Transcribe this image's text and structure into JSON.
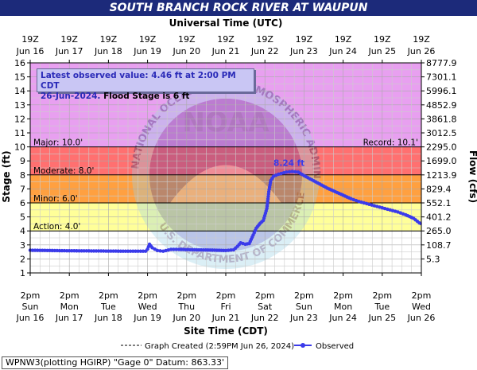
{
  "title": "SOUTH BRANCH ROCK RIVER AT WAUPUN",
  "top_axis_title": "Universal Time (UTC)",
  "bottom_axis_title": "Site Time (CDT)",
  "left_axis_title": "Stage (ft)",
  "right_axis_title": "Flow (cfs)",
  "latest_box": {
    "line1": "Latest observed value: 4.46 ft at 2:00 PM CDT",
    "line2_date": "26-Jun-2024.",
    "line2_flood": "Flood Stage is 6 ft"
  },
  "legend": {
    "graph_created": "Graph Created (2:59PM Jun 26, 2024)",
    "observed": "Observed"
  },
  "footer": "WPNW3(plotting HGIRP) \"Gage 0\" Datum: 863.33'",
  "watermark_text": {
    "top": "NATIONAL OCEANIC AND ATMOSPHERIC ADMINISTRATION",
    "center": "NOAA",
    "bottom": "U.S. DEPARTMENT OF COMMERCE"
  },
  "chart_data": {
    "type": "line",
    "x_start": "Jun 16 2pm CDT",
    "ylim": [
      1,
      16
    ],
    "y_ticks": [
      1,
      2,
      3,
      4,
      5,
      6,
      7,
      8,
      9,
      10,
      11,
      12,
      13,
      14,
      15,
      16
    ],
    "x_ticks_bottom": [
      {
        "time": "2pm",
        "day": "Sun",
        "date": "Jun 16"
      },
      {
        "time": "2pm",
        "day": "Mon",
        "date": "Jun 17"
      },
      {
        "time": "2pm",
        "day": "Tue",
        "date": "Jun 18"
      },
      {
        "time": "2pm",
        "day": "Wed",
        "date": "Jun 19"
      },
      {
        "time": "2pm",
        "day": "Thu",
        "date": "Jun 20"
      },
      {
        "time": "2pm",
        "day": "Fri",
        "date": "Jun 21"
      },
      {
        "time": "2pm",
        "day": "Sat",
        "date": "Jun 22"
      },
      {
        "time": "2pm",
        "day": "Sun",
        "date": "Jun 23"
      },
      {
        "time": "2pm",
        "day": "Mon",
        "date": "Jun 24"
      },
      {
        "time": "2pm",
        "day": "Tue",
        "date": "Jun 25"
      },
      {
        "time": "2pm",
        "day": "Wed",
        "date": "Jun 26"
      }
    ],
    "x_ticks_top": [
      {
        "time": "19Z",
        "date": "Jun 16"
      },
      {
        "time": "19Z",
        "date": "Jun 17"
      },
      {
        "time": "19Z",
        "date": "Jun 18"
      },
      {
        "time": "19Z",
        "date": "Jun 19"
      },
      {
        "time": "19Z",
        "date": "Jun 20"
      },
      {
        "time": "19Z",
        "date": "Jun 21"
      },
      {
        "time": "19Z",
        "date": "Jun 22"
      },
      {
        "time": "19Z",
        "date": "Jun 23"
      },
      {
        "time": "19Z",
        "date": "Jun 24"
      },
      {
        "time": "19Z",
        "date": "Jun 25"
      },
      {
        "time": "19Z",
        "date": "Jun 26"
      }
    ],
    "flow_ticks": [
      {
        "stage": 16,
        "label": "8777.9"
      },
      {
        "stage": 15,
        "label": "7301.1"
      },
      {
        "stage": 14,
        "label": "5996.1"
      },
      {
        "stage": 13,
        "label": "4852.9"
      },
      {
        "stage": 12,
        "label": "3861.8"
      },
      {
        "stage": 11,
        "label": "3012.5"
      },
      {
        "stage": 10,
        "label": "2295.0"
      },
      {
        "stage": 9,
        "label": "1699.0"
      },
      {
        "stage": 8,
        "label": "1213.9"
      },
      {
        "stage": 7,
        "label": "829.4"
      },
      {
        "stage": 6,
        "label": "552.1"
      },
      {
        "stage": 5,
        "label": "401.2"
      },
      {
        "stage": 4,
        "label": "265.0"
      },
      {
        "stage": 3,
        "label": "108.7"
      },
      {
        "stage": 2,
        "label": "5.3"
      }
    ],
    "flood_categories": [
      {
        "name": "Record: 10.1'",
        "stage": 10.1,
        "color": "#e8a0f0"
      },
      {
        "name": "Major: 10.0'",
        "stage": 10.0,
        "color": "#ff7070"
      },
      {
        "name": "Moderate: 8.0'",
        "stage": 8.0,
        "color": "#ffa040"
      },
      {
        "name": "Minor: 6.0'",
        "stage": 6.0,
        "color": "#ffff99"
      },
      {
        "name": "Action: 4.0'",
        "stage": 4.0,
        "color": "#ffffff"
      }
    ],
    "crest_label": "8.24 ft",
    "series": [
      {
        "name": "Observed",
        "color": "#3b3bea",
        "points": [
          [
            0.0,
            2.62
          ],
          [
            0.5,
            2.6
          ],
          [
            1.0,
            2.58
          ],
          [
            1.5,
            2.57
          ],
          [
            2.0,
            2.56
          ],
          [
            2.5,
            2.55
          ],
          [
            2.95,
            2.55
          ],
          [
            3.0,
            2.7
          ],
          [
            3.05,
            3.05
          ],
          [
            3.12,
            2.8
          ],
          [
            3.25,
            2.6
          ],
          [
            3.4,
            2.55
          ],
          [
            3.6,
            2.68
          ],
          [
            3.8,
            2.68
          ],
          [
            4.2,
            2.65
          ],
          [
            4.6,
            2.63
          ],
          [
            5.0,
            2.6
          ],
          [
            5.2,
            2.65
          ],
          [
            5.3,
            2.9
          ],
          [
            5.38,
            3.15
          ],
          [
            5.5,
            3.05
          ],
          [
            5.6,
            3.1
          ],
          [
            5.7,
            3.7
          ],
          [
            5.78,
            4.2
          ],
          [
            5.88,
            4.55
          ],
          [
            5.96,
            4.75
          ],
          [
            6.05,
            5.6
          ],
          [
            6.1,
            6.8
          ],
          [
            6.15,
            7.6
          ],
          [
            6.22,
            7.9
          ],
          [
            6.35,
            8.05
          ],
          [
            6.55,
            8.2
          ],
          [
            6.7,
            8.24
          ],
          [
            6.85,
            8.2
          ],
          [
            7.0,
            7.95
          ],
          [
            7.2,
            7.65
          ],
          [
            7.4,
            7.35
          ],
          [
            7.6,
            7.05
          ],
          [
            7.8,
            6.8
          ],
          [
            8.0,
            6.55
          ],
          [
            8.2,
            6.3
          ],
          [
            8.4,
            6.1
          ],
          [
            8.6,
            5.95
          ],
          [
            8.8,
            5.8
          ],
          [
            9.0,
            5.65
          ],
          [
            9.2,
            5.5
          ],
          [
            9.4,
            5.35
          ],
          [
            9.6,
            5.15
          ],
          [
            9.8,
            4.9
          ],
          [
            10.0,
            4.46
          ]
        ]
      }
    ]
  }
}
